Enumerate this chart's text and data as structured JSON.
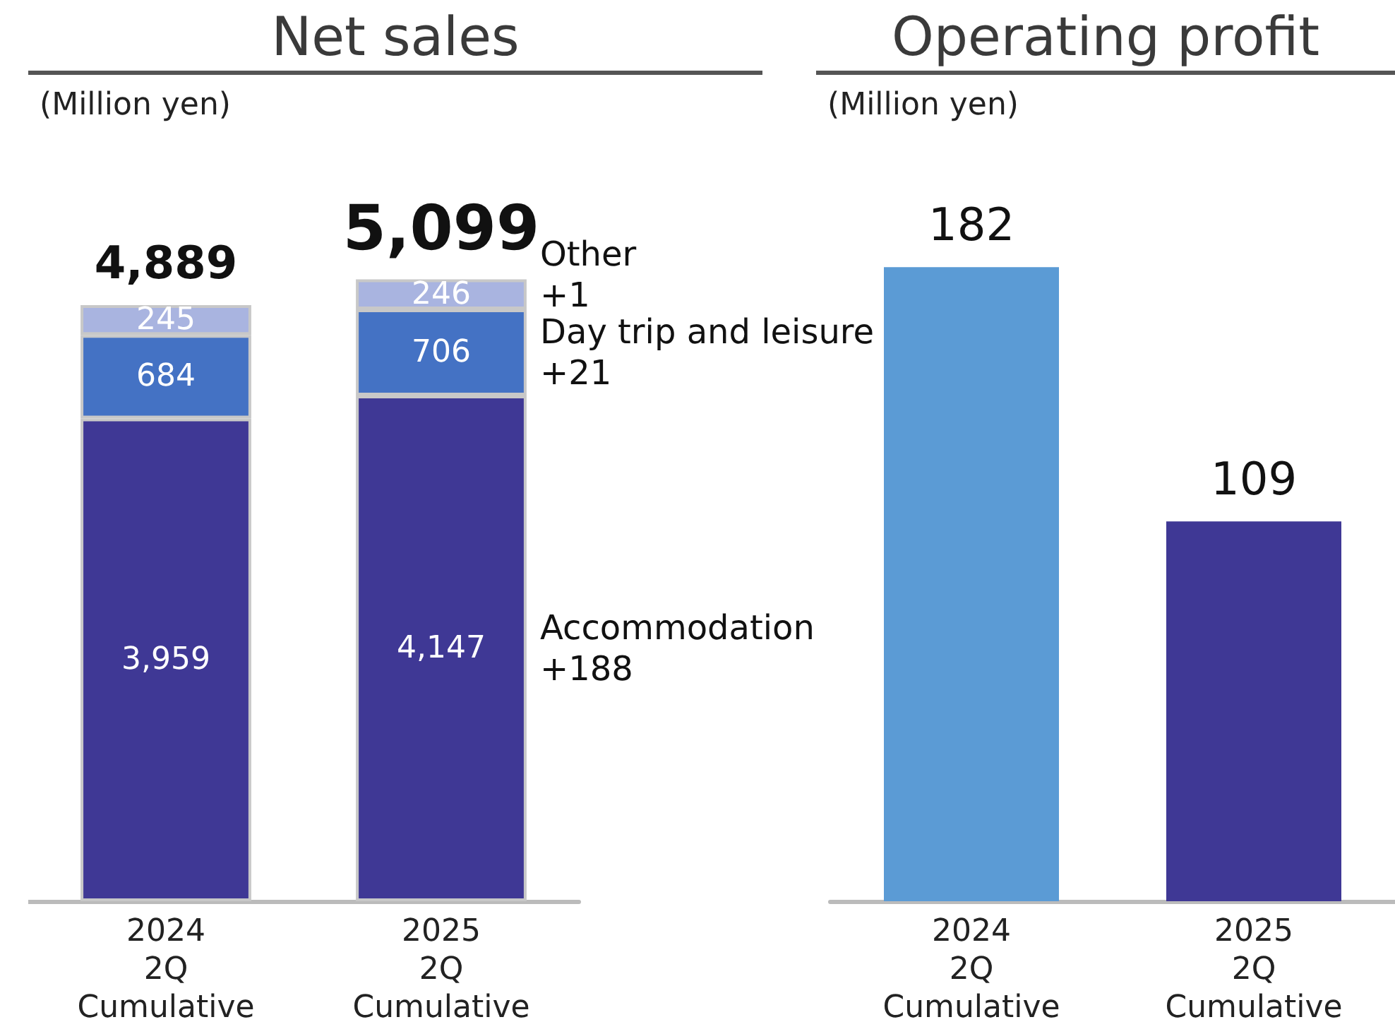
{
  "chart_data": [
    {
      "type": "bar",
      "title": "Net sales",
      "ylabel": "(Million yen)",
      "categories": [
        "2024\n2Q\nCumulative",
        "2025\n2Q\nCumulative"
      ],
      "stacked": true,
      "series": [
        {
          "name": "Accommodation",
          "color": "#3f3895",
          "values": [
            3959,
            4147
          ],
          "value_labels": [
            "3,959",
            "4,147"
          ]
        },
        {
          "name": "Day trip and leisure",
          "color": "#4472c4",
          "values": [
            684,
            706
          ],
          "value_labels": [
            "684",
            "706"
          ]
        },
        {
          "name": "Other",
          "color": "#a9b4e0",
          "values": [
            245,
            246
          ],
          "value_labels": [
            "245",
            "246"
          ]
        }
      ],
      "totals": [
        "4,889",
        "5,099"
      ],
      "annotations": [
        "+188",
        "+21",
        "+1"
      ]
    },
    {
      "type": "bar",
      "title": "Operating profit",
      "ylabel": "(Million yen)",
      "categories": [
        "2024\n2Q\nCumulative",
        "2025\n2Q\nCumulative"
      ],
      "values": [
        182,
        109
      ],
      "colors": [
        "#5b9bd5",
        "#3f3895"
      ],
      "data_labels": true
    }
  ]
}
